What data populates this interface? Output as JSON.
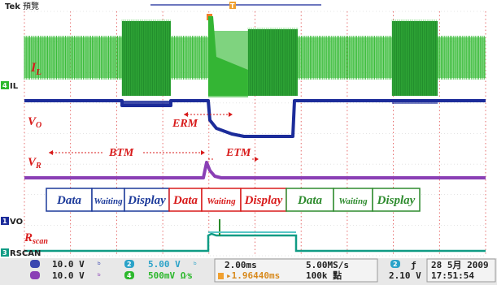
{
  "header": {
    "brand": "Tek",
    "status": "預覽",
    "trigger_marker": "T"
  },
  "channels": {
    "il": {
      "num": "4",
      "name": "IL",
      "color": "#2db82d"
    },
    "vo": {
      "num": "1",
      "name": "VO",
      "color": "#1c2c9a"
    },
    "vr": {
      "num": "2",
      "name": "VR",
      "color": "#8a3fb5"
    },
    "rscan": {
      "num": "3",
      "name": "RSCAN",
      "color": "#0f9b84"
    }
  },
  "annotations": {
    "il_sym": "I",
    "il_sub": "L",
    "vo_sym": "V",
    "vo_sub": "O",
    "vr_sym": "V",
    "vr_sub": "R",
    "rscan_sym": "R",
    "rscan_sub": "scan",
    "erm": "ERM",
    "btm": "BTM",
    "etm": "ETM"
  },
  "modes": [
    {
      "label": "Data",
      "color": "#1c3a9a"
    },
    {
      "label": "Waiting",
      "color": "#1c3a9a"
    },
    {
      "label": "Display",
      "color": "#1c3a9a"
    },
    {
      "label": "Data",
      "color": "#d81b1b"
    },
    {
      "label": "Waiting",
      "color": "#d81b1b"
    },
    {
      "label": "Display",
      "color": "#d81b1b"
    },
    {
      "label": "Data",
      "color": "#2e8b2e"
    },
    {
      "label": "Waiting",
      "color": "#2e8b2e"
    },
    {
      "label": "Display",
      "color": "#2e8b2e"
    }
  ],
  "readout": {
    "ch1_scale": "10.0 V",
    "ch3_scale": "10.0 V",
    "ch2_num": "2",
    "ch2_scale": "5.00 V",
    "ch4_num": "4",
    "ch4_scale": "500mV Ω⁄s",
    "timebase": "2.00ms",
    "trig_pos": "▸1.96440ms",
    "sample_rate": "5.00MS/s",
    "record_length": "100k 點",
    "trig_ch": "2",
    "trig_slope": "ƒ",
    "trig_level": "2.10 V",
    "date": "28 5月  2009",
    "time": "17:51:54"
  }
}
